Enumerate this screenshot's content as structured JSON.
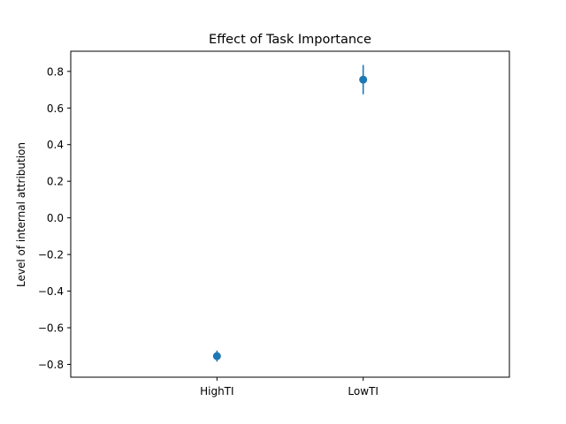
{
  "chart_data": {
    "type": "scatter",
    "title": "Effect of Task Importance",
    "xlabel": "",
    "ylabel": "Level of internal attribution",
    "categories": [
      "HighTI",
      "LowTI"
    ],
    "series": [
      {
        "values": [
          -0.755,
          0.755
        ],
        "errors": [
          0.03,
          0.08
        ],
        "color": "#1f77b4"
      }
    ],
    "ylim": [
      -0.87,
      0.91
    ],
    "yticks": [
      0.8,
      0.6,
      0.4,
      0.2,
      0.0,
      -0.2,
      -0.4,
      -0.6,
      -0.8
    ],
    "ytick_labels": [
      "0.8",
      "0.6",
      "0.4",
      "0.2",
      "0.0",
      "−0.2",
      "−0.4",
      "−0.6",
      "−0.8"
    ],
    "grid": false,
    "legend": false
  }
}
